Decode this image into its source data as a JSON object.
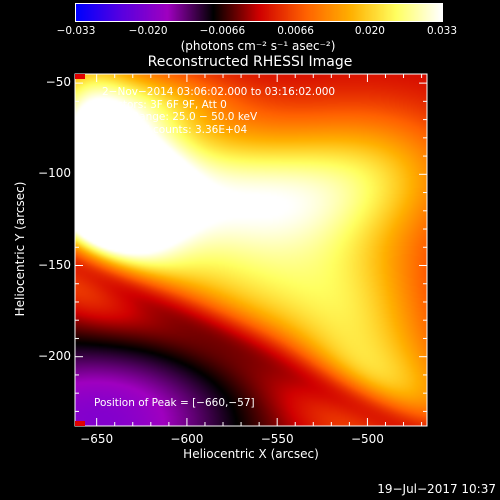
{
  "chart_data": {
    "type": "heatmap",
    "title": "Reconstructed RHESSI Image",
    "xlabel": "Heliocentric X (arcsec)",
    "ylabel": "Heliocentric Y (arcsec)",
    "xlim": [
      -662,
      -467
    ],
    "ylim": [
      -238,
      -45
    ],
    "xticks": [
      {
        "value": -650,
        "label": "−650"
      },
      {
        "value": -600,
        "label": "−600"
      },
      {
        "value": -550,
        "label": "−550"
      },
      {
        "value": -500,
        "label": "−500"
      }
    ],
    "yticks": [
      {
        "value": -50,
        "label": "−50"
      },
      {
        "value": -100,
        "label": "−100"
      },
      {
        "value": -150,
        "label": "−150"
      },
      {
        "value": -200,
        "label": "−200"
      }
    ],
    "colorbar": {
      "range": [
        -0.033,
        0.033
      ],
      "ticks": [
        {
          "value": -0.033,
          "label": "−0.033"
        },
        {
          "value": -0.02,
          "label": "−0.020"
        },
        {
          "value": -0.0066,
          "label": "−0.0066"
        },
        {
          "value": 0.0066,
          "label": "0.0066"
        },
        {
          "value": 0.02,
          "label": "0.020"
        },
        {
          "value": 0.033,
          "label": "0.033"
        }
      ],
      "unit_label": "(photons cm⁻² s⁻¹ asec⁻²)",
      "colors": [
        "#0000ff",
        "#5a00e0",
        "#a000c0",
        "#000000",
        "#d00000",
        "#ff6000",
        "#ffb000",
        "#ffff60",
        "#ffffff"
      ]
    },
    "annotations": [
      "2−Nov−2014 03:06:02.000 to 03:16:02.000",
      "Detectors: 3F 6F 9F, Att 0",
      "Energy Range: 25.0 − 50.0 keV",
      "Clean    Total counts: 3.36E+04"
    ],
    "peak_label": "Position of Peak = [−660,−57]",
    "sources": [
      {
        "x": -655,
        "y": -95,
        "sx": 18,
        "sy": 40,
        "amp": 0.032
      },
      {
        "x": -628,
        "y": -100,
        "sx": 22,
        "sy": 28,
        "amp": 0.026
      },
      {
        "x": -640,
        "y": -135,
        "sx": 30,
        "sy": 30,
        "amp": 0.02
      },
      {
        "x": -590,
        "y": -110,
        "sx": 30,
        "sy": 28,
        "amp": 0.018
      },
      {
        "x": -545,
        "y": -115,
        "sx": 32,
        "sy": 26,
        "amp": 0.019
      },
      {
        "x": -495,
        "y": -100,
        "sx": 35,
        "sy": 25,
        "amp": 0.016
      },
      {
        "x": -560,
        "y": -165,
        "sx": 40,
        "sy": 25,
        "amp": 0.015
      },
      {
        "x": -505,
        "y": -185,
        "sx": 30,
        "sy": 40,
        "amp": 0.016
      },
      {
        "x": -490,
        "y": -225,
        "sx": 35,
        "sy": 22,
        "amp": 0.013
      },
      {
        "x": -620,
        "y": -60,
        "sx": 30,
        "sy": 12,
        "amp": 0.01
      }
    ],
    "dark_lane": {
      "x0": -662,
      "y0": -150,
      "x1": -490,
      "y1": -235,
      "width": 10
    },
    "negative_region": {
      "x": -650,
      "y": -235,
      "sx": 60,
      "sy": 35,
      "amp": -0.02
    }
  },
  "footer": {
    "timestamp": "19−Jul−2017 10:37"
  }
}
